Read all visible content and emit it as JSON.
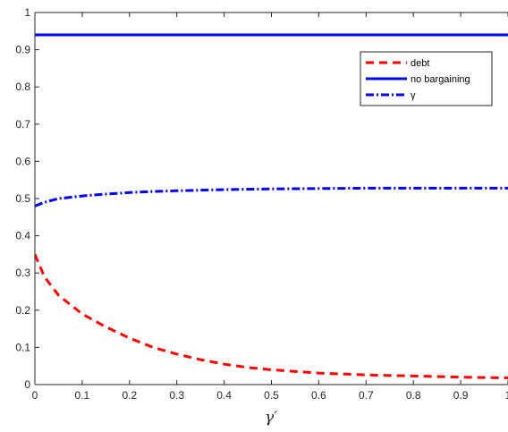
{
  "chart_data": {
    "type": "line",
    "title": "",
    "xlabel": "γ′",
    "ylabel": "",
    "xlim": [
      0,
      1
    ],
    "ylim": [
      0,
      1
    ],
    "grid": false,
    "legend_placement": "top-right",
    "x_ticks": [
      "0",
      "0.1",
      "0.2",
      "0.3",
      "0.4",
      "0.5",
      "0.6",
      "0.7",
      "0.8",
      "0.9",
      "1"
    ],
    "y_ticks": [
      "0",
      "0.1",
      "0.2",
      "0.3",
      "0.4",
      "0.5",
      "0.6",
      "0.7",
      "0.8",
      "0.9",
      "1"
    ],
    "series": [
      {
        "name": "debt",
        "color": "#ff0000",
        "style": "dashed",
        "x": [
          0,
          0.02,
          0.05,
          0.1,
          0.15,
          0.2,
          0.25,
          0.3,
          0.35,
          0.4,
          0.45,
          0.5,
          0.6,
          0.7,
          0.8,
          0.9,
          1.0
        ],
        "y": [
          0.35,
          0.29,
          0.24,
          0.19,
          0.155,
          0.125,
          0.1,
          0.082,
          0.067,
          0.055,
          0.046,
          0.04,
          0.031,
          0.026,
          0.023,
          0.02,
          0.018
        ]
      },
      {
        "name": "no bargaining",
        "color": "#0000ff",
        "style": "solid",
        "x": [
          0,
          1.0
        ],
        "y": [
          0.94,
          0.94
        ]
      },
      {
        "name": "γ",
        "color": "#0000ff",
        "style": "dashdot",
        "x": [
          0,
          0.02,
          0.05,
          0.1,
          0.15,
          0.2,
          0.25,
          0.3,
          0.4,
          0.5,
          0.6,
          0.7,
          0.8,
          0.9,
          1.0
        ],
        "y": [
          0.48,
          0.49,
          0.5,
          0.507,
          0.512,
          0.516,
          0.519,
          0.521,
          0.524,
          0.526,
          0.527,
          0.528,
          0.528,
          0.528,
          0.528
        ]
      }
    ]
  }
}
